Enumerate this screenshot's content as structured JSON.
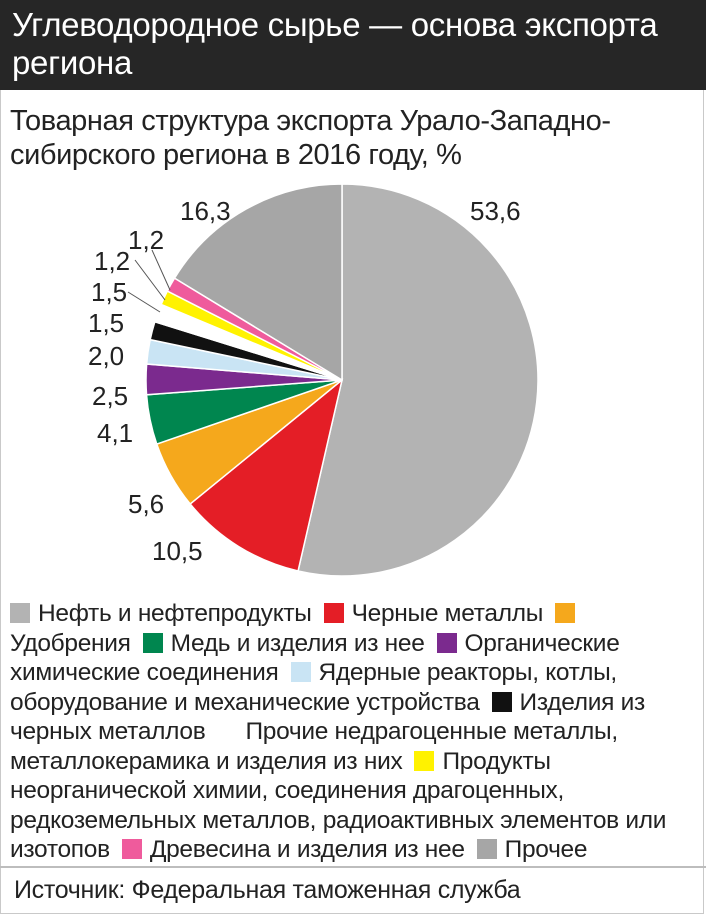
{
  "header": {
    "title": "Углеводородное сырье — основа экспорта региона"
  },
  "subtitle": "Товарная структура экспорта Урало-Западно-сибирского региона в 2016 году, %",
  "source": "Источник: Федеральная таможенная служба",
  "colors": {
    "oil": "#b3b3b3",
    "ferrous": "#e41e26",
    "fertilizers": "#f5a81c",
    "copper": "#00864f",
    "organic": "#7b2a8e",
    "nuclear": "#c9e4f4",
    "ferrous_products": "#111111",
    "other_metals": "#ffffff",
    "inorganic": "#fff200",
    "wood": "#ef5b9c",
    "other": "#a6a6a6"
  },
  "chart_data": {
    "type": "pie",
    "title": "Товарная структура экспорта Урало-Западно-сибирского региона в 2016 году, %",
    "start": "12 o'clock, clockwise",
    "slices": [
      {
        "key": "oil",
        "label": "Нефть и нефтепродукты",
        "value": 53.6,
        "value_label": "53,6",
        "color": "#b3b3b3"
      },
      {
        "key": "ferrous",
        "label": "Черные металлы",
        "value": 10.5,
        "value_label": "10,5",
        "color": "#e41e26"
      },
      {
        "key": "fertilizers",
        "label": "Удобрения",
        "value": 5.6,
        "value_label": "5,6",
        "color": "#f5a81c"
      },
      {
        "key": "copper",
        "label": "Медь и изделия из нее",
        "value": 4.1,
        "value_label": "4,1",
        "color": "#00864f"
      },
      {
        "key": "organic",
        "label": "Органические химические соединения",
        "value": 2.5,
        "value_label": "2,5",
        "color": "#7b2a8e"
      },
      {
        "key": "nuclear",
        "label": "Ядерные реакторы, котлы, оборудование и механические устройства",
        "value": 2.0,
        "value_label": "2,0",
        "color": "#c9e4f4"
      },
      {
        "key": "ferrous_products",
        "label": "Изделия из черных металлов",
        "value": 1.5,
        "value_label": "1,5",
        "color": "#111111"
      },
      {
        "key": "other_metals",
        "label": "Прочие недрагоценные металлы, металлокерамика и изделия из них",
        "value": 1.5,
        "value_label": "1,5",
        "color": "#ffffff"
      },
      {
        "key": "inorganic",
        "label": "Продукты неорганической химии, соединения драгоценных, редкоземельных металлов, радиоактивных элементов или изотопов",
        "value": 1.2,
        "value_label": "1,2",
        "color": "#fff200"
      },
      {
        "key": "wood",
        "label": "Древесина и изделия из нее",
        "value": 1.2,
        "value_label": "1,2",
        "color": "#ef5b9c"
      },
      {
        "key": "other",
        "label": "Прочее",
        "value": 16.3,
        "value_label": "16,3",
        "color": "#a6a6a6"
      }
    ],
    "legend_position": "bottom"
  }
}
